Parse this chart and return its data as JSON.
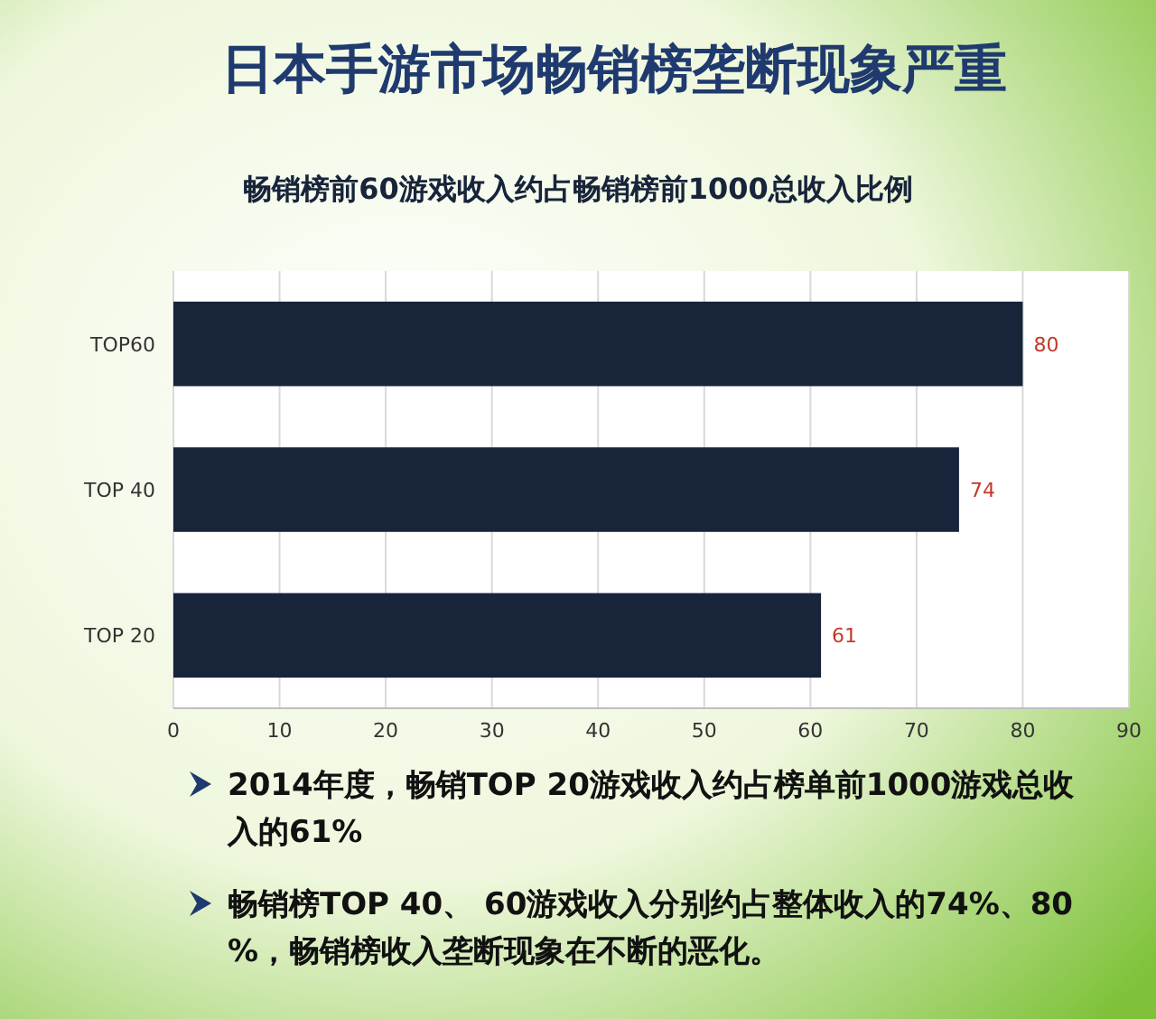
{
  "chart_data": {
    "type": "bar",
    "orientation": "horizontal",
    "title": "日本手游市场畅销榜垄断现象严重",
    "subtitle": "畅销榜前60游戏收入约占畅销榜前1000总收入比例",
    "categories": [
      "TOP60",
      "TOP 40",
      "TOP 20"
    ],
    "values": [
      80,
      74,
      61
    ],
    "color": "#17243a",
    "data_labels": true,
    "xlim": [
      0,
      90
    ],
    "xticks": [
      0,
      10,
      20,
      30,
      40,
      50,
      60,
      70,
      80,
      90
    ],
    "grid": "x",
    "annotations": [
      "2014年度，畅销TOP 20游戏收入约占榜单前1000游戏总收入的61%",
      "畅销榜TOP 40、 60游戏收入分别约占整体收入的74%、80%，畅销榜收入垄断现象在不断的恶化。"
    ]
  }
}
